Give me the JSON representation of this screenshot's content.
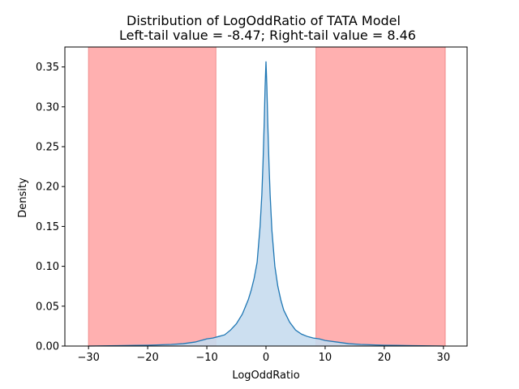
{
  "chart_data": {
    "type": "area",
    "title": "Distribution of LogOddRatio of TATA Model",
    "subtitle": "Left-tail value = -8.47;  Right-tail value = 8.46",
    "xlabel": "LogOddRatio",
    "ylabel": "Density",
    "xlim": [
      -34,
      34
    ],
    "ylim": [
      0,
      0.375
    ],
    "xticks": [
      -30,
      -20,
      -10,
      0,
      10,
      20,
      30
    ],
    "xtick_labels": [
      "−30",
      "−20",
      "−10",
      "0",
      "10",
      "20",
      "30"
    ],
    "yticks": [
      0.0,
      0.05,
      0.1,
      0.15,
      0.2,
      0.25,
      0.3,
      0.35
    ],
    "ytick_labels": [
      "0.00",
      "0.05",
      "0.10",
      "0.15",
      "0.20",
      "0.25",
      "0.30",
      "0.35"
    ],
    "grid": false,
    "tail_regions": [
      {
        "from": -30,
        "to": -8.47
      },
      {
        "from": 8.46,
        "to": 30.3
      }
    ],
    "series": [
      {
        "x": [
          -30,
          -25,
          -22,
          -20,
          -18,
          -16,
          -14,
          -12,
          -10,
          -9,
          -8,
          -7,
          -6,
          -5,
          -4,
          -3,
          -2.5,
          -2,
          -1.5,
          -1,
          -0.7,
          -0.5,
          -0.3,
          -0.15,
          0,
          0.15,
          0.3,
          0.5,
          0.7,
          1,
          1.5,
          2,
          2.5,
          3,
          4,
          5,
          6,
          7,
          8,
          9,
          10,
          12,
          14,
          16,
          18,
          20,
          22,
          25,
          30
        ],
        "y": [
          0.0,
          0.0005,
          0.0008,
          0.001,
          0.0015,
          0.002,
          0.003,
          0.005,
          0.009,
          0.01,
          0.012,
          0.014,
          0.02,
          0.028,
          0.04,
          0.058,
          0.07,
          0.085,
          0.105,
          0.15,
          0.19,
          0.23,
          0.28,
          0.325,
          0.357,
          0.325,
          0.28,
          0.23,
          0.19,
          0.145,
          0.1,
          0.075,
          0.058,
          0.045,
          0.03,
          0.02,
          0.015,
          0.012,
          0.01,
          0.009,
          0.007,
          0.005,
          0.003,
          0.002,
          0.0015,
          0.001,
          0.0008,
          0.0005,
          0.0
        ],
        "color": "#1f77b4",
        "fill": "#c6dbee"
      }
    ],
    "tail_color": "#ffb0b0",
    "tail_edge_color": "#f08c8c"
  }
}
